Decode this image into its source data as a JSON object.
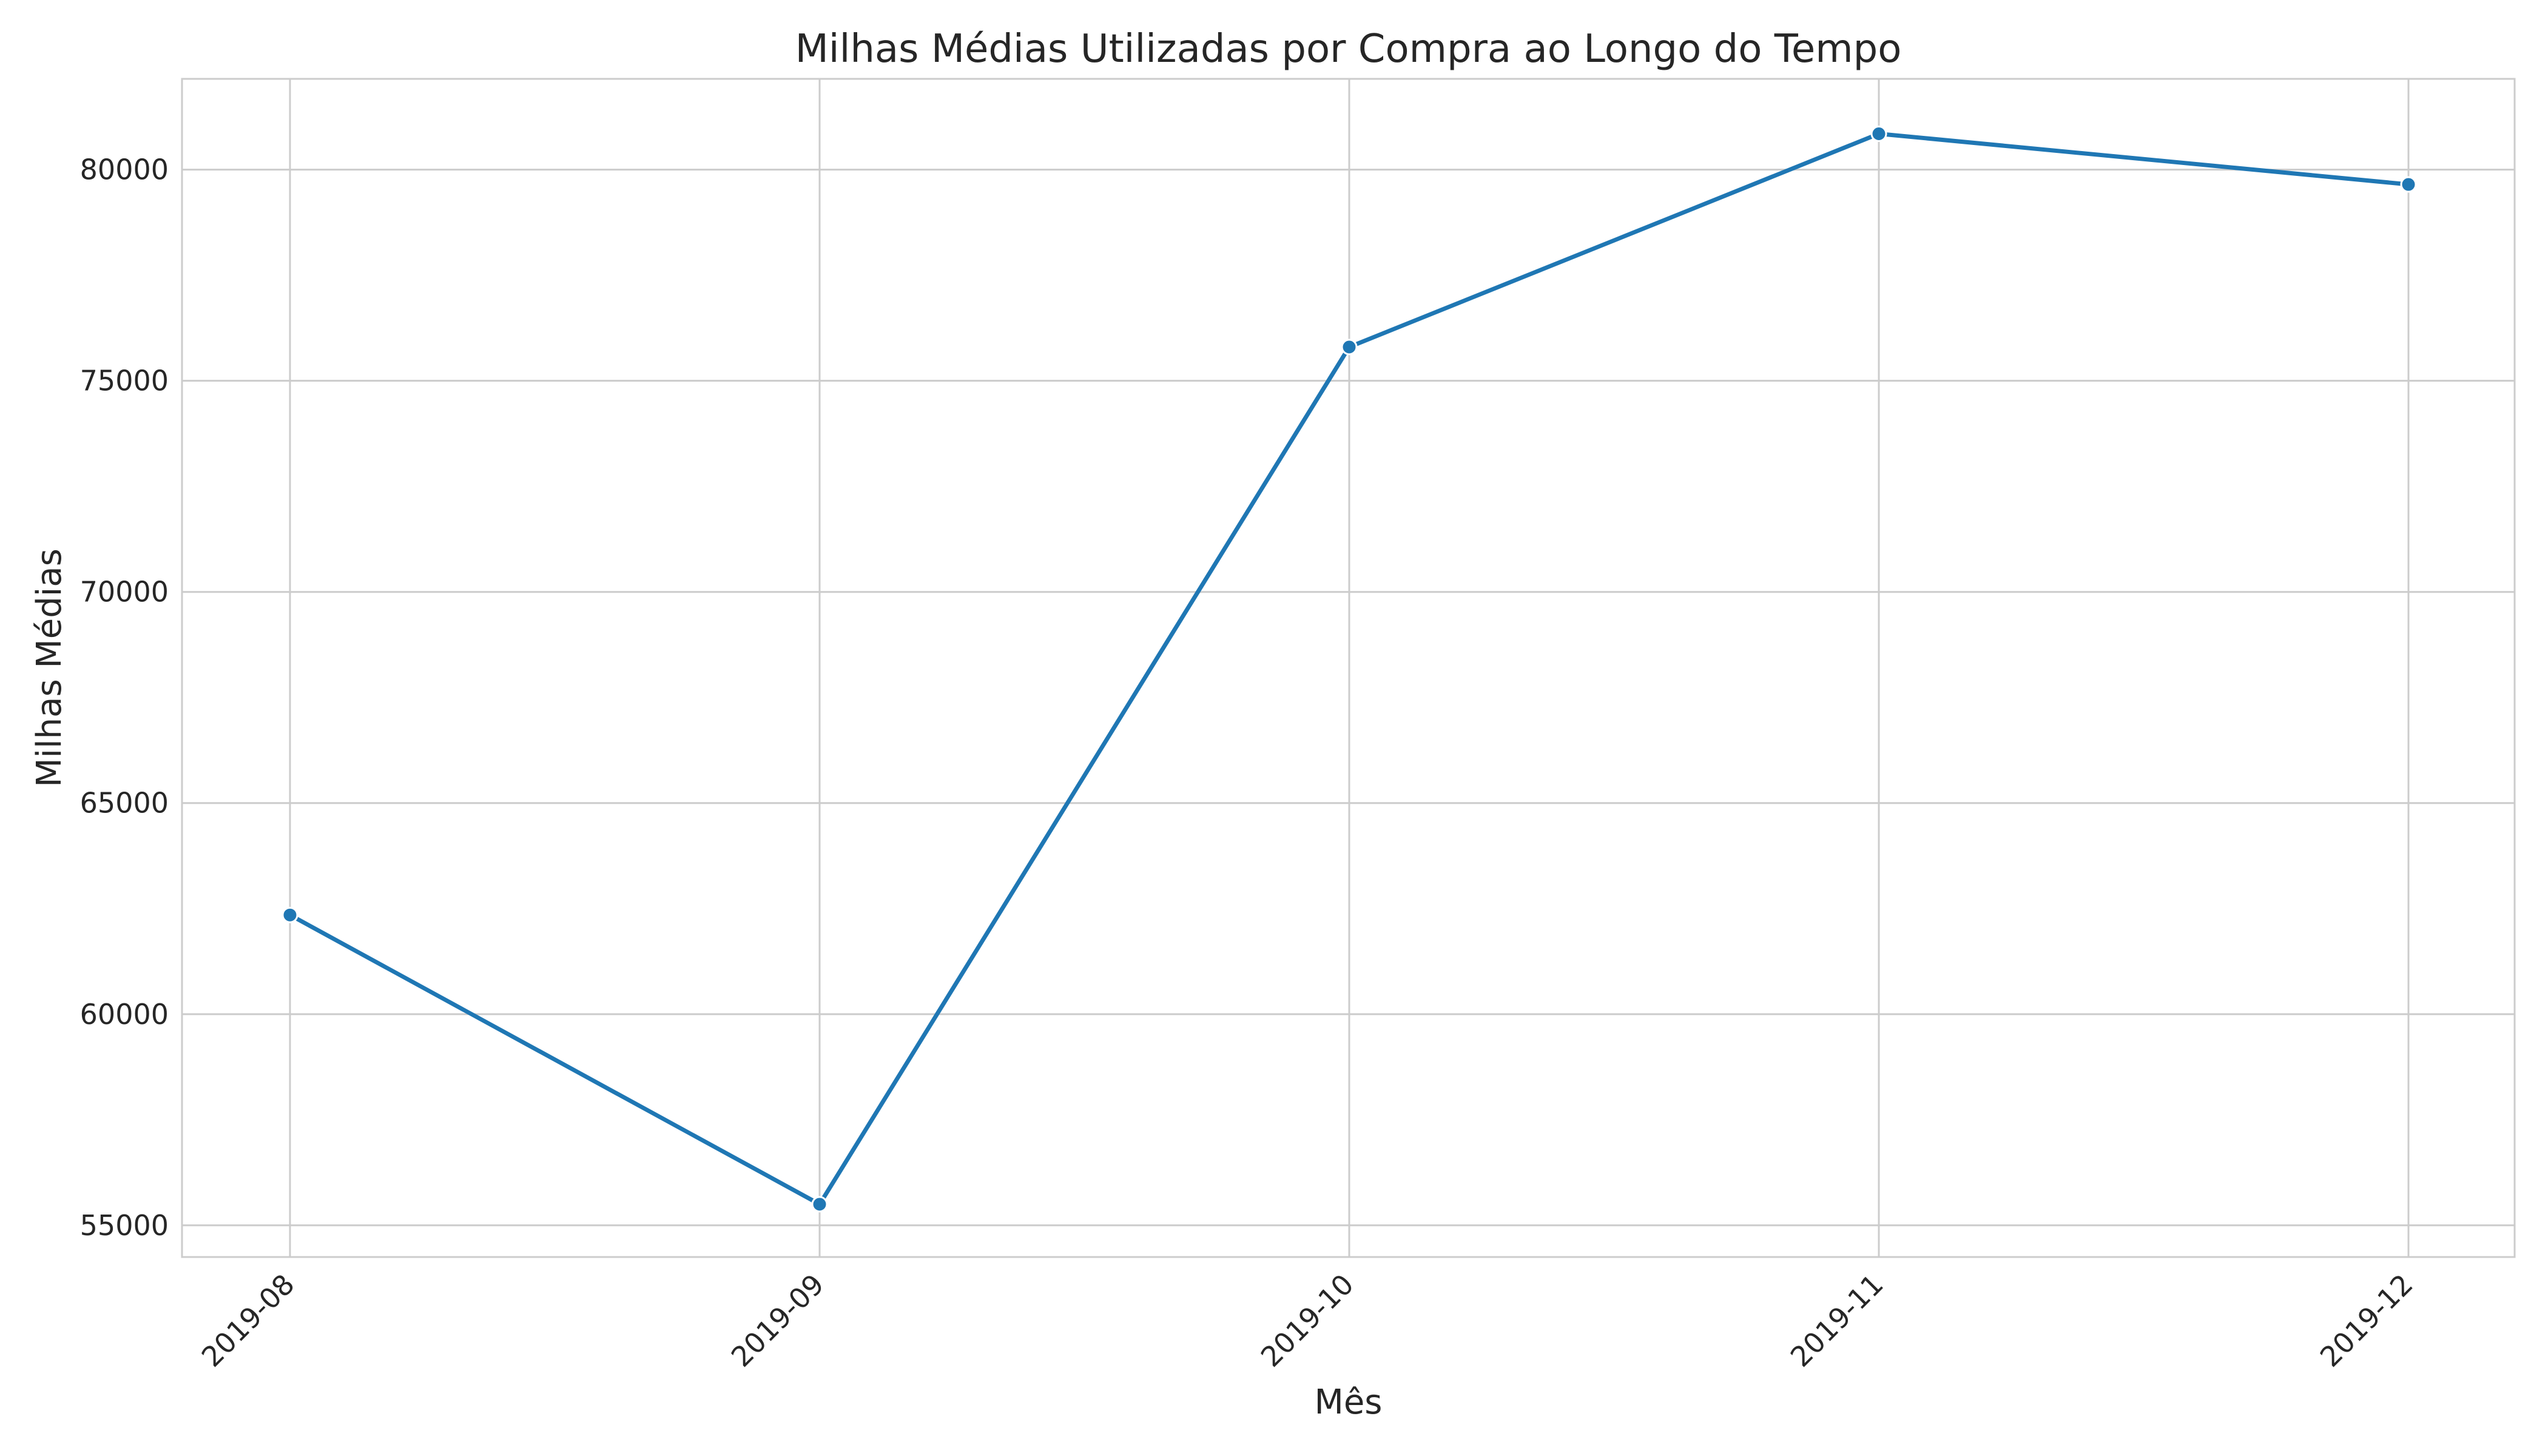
{
  "chart_data": {
    "type": "line",
    "title": "Milhas Médias Utilizadas por Compra ao Longo do Tempo",
    "xlabel": "Mês",
    "ylabel": "Milhas Médias",
    "x": [
      "2019-08",
      "2019-09",
      "2019-10",
      "2019-11",
      "2019-12"
    ],
    "series": [
      {
        "values": [
          62350,
          55500,
          75800,
          80850,
          79650
        ],
        "color": "#1f77b4",
        "marker": "circle"
      }
    ],
    "ylim": [
      54250,
      82150
    ],
    "yticks": [
      55000,
      60000,
      65000,
      70000,
      75000,
      80000
    ],
    "grid": true,
    "xtick_rotation": 45
  }
}
